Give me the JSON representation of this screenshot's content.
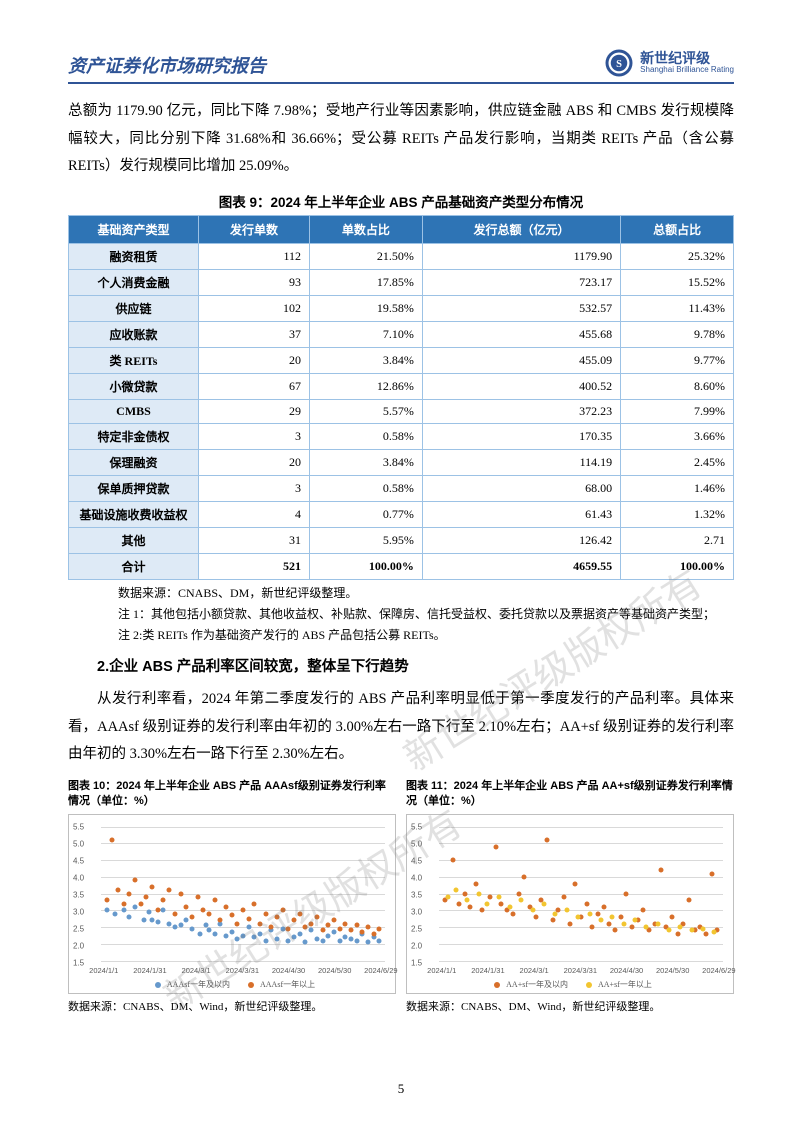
{
  "header": {
    "title": "资产证券化市场研究报告",
    "logo_cn": "新世纪评级",
    "logo_en": "Shanghai Brilliance Rating"
  },
  "para1": "总额为 1179.90 亿元，同比下降 7.98%；受地产行业等因素影响，供应链金融 ABS 和 CMBS 发行规模降幅较大，同比分别下降 31.68%和 36.66%；受公募 REITs 产品发行影响，当期类 REITs 产品（含公募 REITs）发行规模同比增加 25.09%。",
  "table9": {
    "caption": "图表 9：2024 年上半年企业 ABS 产品基础资产类型分布情况",
    "header_bg": "#2e74b5",
    "label_bg": "#deeaf6",
    "border": "#9cc2e5",
    "columns": [
      "基础资产类型",
      "发行单数",
      "单数占比",
      "发行总额（亿元）",
      "总额占比"
    ],
    "rows": [
      [
        "融资租赁",
        "112",
        "21.50%",
        "1179.90",
        "25.32%"
      ],
      [
        "个人消费金融",
        "93",
        "17.85%",
        "723.17",
        "15.52%"
      ],
      [
        "供应链",
        "102",
        "19.58%",
        "532.57",
        "11.43%"
      ],
      [
        "应收账款",
        "37",
        "7.10%",
        "455.68",
        "9.78%"
      ],
      [
        "类 REITs",
        "20",
        "3.84%",
        "455.09",
        "9.77%"
      ],
      [
        "小微贷款",
        "67",
        "12.86%",
        "400.52",
        "8.60%"
      ],
      [
        "CMBS",
        "29",
        "5.57%",
        "372.23",
        "7.99%"
      ],
      [
        "特定非金债权",
        "3",
        "0.58%",
        "170.35",
        "3.66%"
      ],
      [
        "保理融资",
        "20",
        "3.84%",
        "114.19",
        "2.45%"
      ],
      [
        "保单质押贷款",
        "3",
        "0.58%",
        "68.00",
        "1.46%"
      ],
      [
        "基础设施收费收益权",
        "4",
        "0.77%",
        "61.43",
        "1.32%"
      ],
      [
        "其他",
        "31",
        "5.95%",
        "126.42",
        "2.71"
      ]
    ],
    "total": [
      "合计",
      "521",
      "100.00%",
      "4659.55",
      "100.00%"
    ],
    "notes": [
      "数据来源：CNABS、DM，新世纪评级整理。",
      "注 1：其他包括小额贷款、其他收益权、补贴款、保障房、信托受益权、委托贷款以及票据资产等基础资产类型；",
      "注 2:类 REITs 作为基础资产发行的 ABS 产品包括公募 REITs。"
    ]
  },
  "section2": {
    "heading": "2.企业 ABS 产品利率区间较宽，整体呈下行趋势",
    "para": "从发行利率看，2024 年第二季度发行的 ABS 产品利率明显低于第一季度发行的产品利率。具体来看，AAAsf 级别证券的发行利率由年初的 3.00%左右一路下行至 2.10%左右；AA+sf 级别证券的发行利率由年初的 3.30%左右一路下行至 2.30%左右。"
  },
  "chart10": {
    "title": "图表 10：2024 年上半年企业 ABS 产品 AAAsf级别证券发行利率情况（单位：%）",
    "source": "数据来源：CNABS、DM、Wind，新世纪评级整理。",
    "ylim": [
      1.5,
      5.5
    ],
    "ytick_step": 0.5,
    "xlabels": [
      "2024/1/1",
      "2024/1/31",
      "2024/3/1",
      "2024/3/31",
      "2024/4/30",
      "2024/5/30",
      "2024/6/29"
    ],
    "series": [
      {
        "name": "AAAsf一年及以内",
        "color": "#6699cc",
        "points": [
          [
            2,
            3.0
          ],
          [
            5,
            2.9
          ],
          [
            8,
            3.0
          ],
          [
            10,
            2.8
          ],
          [
            12,
            3.1
          ],
          [
            15,
            2.7
          ],
          [
            17,
            2.95
          ],
          [
            18,
            2.7
          ],
          [
            20,
            2.65
          ],
          [
            22,
            3.0
          ],
          [
            24,
            2.6
          ],
          [
            26,
            2.5
          ],
          [
            28,
            2.55
          ],
          [
            30,
            2.7
          ],
          [
            32,
            2.45
          ],
          [
            35,
            2.3
          ],
          [
            37,
            2.55
          ],
          [
            38,
            2.4
          ],
          [
            40,
            2.3
          ],
          [
            42,
            2.6
          ],
          [
            44,
            2.25
          ],
          [
            46,
            2.35
          ],
          [
            48,
            2.15
          ],
          [
            50,
            2.25
          ],
          [
            52,
            2.5
          ],
          [
            54,
            2.2
          ],
          [
            56,
            2.3
          ],
          [
            58,
            2.1
          ],
          [
            60,
            2.4
          ],
          [
            62,
            2.15
          ],
          [
            64,
            2.45
          ],
          [
            66,
            2.1
          ],
          [
            68,
            2.2
          ],
          [
            70,
            2.3
          ],
          [
            72,
            2.05
          ],
          [
            74,
            2.4
          ],
          [
            76,
            2.15
          ],
          [
            78,
            2.1
          ],
          [
            80,
            2.25
          ],
          [
            82,
            2.35
          ],
          [
            84,
            2.1
          ],
          [
            86,
            2.2
          ],
          [
            88,
            2.15
          ],
          [
            90,
            2.1
          ],
          [
            92,
            2.3
          ],
          [
            94,
            2.05
          ],
          [
            96,
            2.2
          ],
          [
            98,
            2.1
          ]
        ]
      },
      {
        "name": "AAAsf一年以上",
        "color": "#d86f2a",
        "points": [
          [
            2,
            3.3
          ],
          [
            4,
            5.1
          ],
          [
            6,
            3.6
          ],
          [
            8,
            3.2
          ],
          [
            10,
            3.5
          ],
          [
            12,
            3.9
          ],
          [
            14,
            3.2
          ],
          [
            16,
            3.4
          ],
          [
            18,
            3.7
          ],
          [
            20,
            3.0
          ],
          [
            22,
            3.3
          ],
          [
            24,
            3.6
          ],
          [
            26,
            2.9
          ],
          [
            28,
            3.5
          ],
          [
            30,
            3.1
          ],
          [
            32,
            2.8
          ],
          [
            34,
            3.4
          ],
          [
            36,
            3.0
          ],
          [
            38,
            2.9
          ],
          [
            40,
            3.3
          ],
          [
            42,
            2.7
          ],
          [
            44,
            3.1
          ],
          [
            46,
            2.85
          ],
          [
            48,
            2.6
          ],
          [
            50,
            3.0
          ],
          [
            52,
            2.75
          ],
          [
            54,
            3.2
          ],
          [
            56,
            2.6
          ],
          [
            58,
            2.9
          ],
          [
            60,
            2.5
          ],
          [
            62,
            2.8
          ],
          [
            64,
            3.0
          ],
          [
            66,
            2.45
          ],
          [
            68,
            2.7
          ],
          [
            70,
            2.9
          ],
          [
            72,
            2.5
          ],
          [
            74,
            2.6
          ],
          [
            76,
            2.8
          ],
          [
            78,
            2.4
          ],
          [
            80,
            2.55
          ],
          [
            82,
            2.7
          ],
          [
            84,
            2.45
          ],
          [
            86,
            2.6
          ],
          [
            88,
            2.4
          ],
          [
            90,
            2.55
          ],
          [
            92,
            2.35
          ],
          [
            94,
            2.5
          ],
          [
            96,
            2.3
          ],
          [
            98,
            2.45
          ]
        ]
      }
    ]
  },
  "chart11": {
    "title": "图表 11：2024 年上半年企业 ABS 产品 AA+sf级别证券发行利率情况（单位：%）",
    "source": "数据来源：CNABS、DM、Wind，新世纪评级整理。",
    "ylim": [
      1.5,
      5.5
    ],
    "ytick_step": 0.5,
    "xlabels": [
      "2024/1/1",
      "2024/1/31",
      "2024/3/1",
      "2024/3/31",
      "2024/4/30",
      "2024/5/30",
      "2024/6/29"
    ],
    "series": [
      {
        "name": "AA+sf一年及以内",
        "color": "#d86f2a",
        "points": [
          [
            2,
            3.3
          ],
          [
            5,
            4.5
          ],
          [
            7,
            3.2
          ],
          [
            9,
            3.5
          ],
          [
            11,
            3.1
          ],
          [
            13,
            3.8
          ],
          [
            15,
            3.0
          ],
          [
            18,
            3.4
          ],
          [
            20,
            4.9
          ],
          [
            22,
            3.2
          ],
          [
            24,
            3.0
          ],
          [
            26,
            2.9
          ],
          [
            28,
            3.5
          ],
          [
            30,
            4.0
          ],
          [
            32,
            3.1
          ],
          [
            34,
            2.8
          ],
          [
            36,
            3.3
          ],
          [
            38,
            5.1
          ],
          [
            40,
            2.7
          ],
          [
            42,
            3.0
          ],
          [
            44,
            3.4
          ],
          [
            46,
            2.6
          ],
          [
            48,
            3.8
          ],
          [
            50,
            2.8
          ],
          [
            52,
            3.2
          ],
          [
            54,
            2.5
          ],
          [
            56,
            2.9
          ],
          [
            58,
            3.1
          ],
          [
            60,
            2.6
          ],
          [
            62,
            2.4
          ],
          [
            64,
            2.8
          ],
          [
            66,
            3.5
          ],
          [
            68,
            2.5
          ],
          [
            70,
            2.7
          ],
          [
            72,
            3.0
          ],
          [
            74,
            2.4
          ],
          [
            76,
            2.6
          ],
          [
            78,
            4.2
          ],
          [
            80,
            2.5
          ],
          [
            82,
            2.8
          ],
          [
            84,
            2.3
          ],
          [
            86,
            2.6
          ],
          [
            88,
            3.3
          ],
          [
            90,
            2.4
          ],
          [
            92,
            2.5
          ],
          [
            94,
            2.3
          ],
          [
            96,
            4.1
          ],
          [
            98,
            2.4
          ]
        ]
      },
      {
        "name": "AA+sf一年以上",
        "color": "#f2c530",
        "points": [
          [
            3,
            3.4
          ],
          [
            6,
            3.6
          ],
          [
            10,
            3.3
          ],
          [
            14,
            3.5
          ],
          [
            17,
            3.2
          ],
          [
            21,
            3.4
          ],
          [
            25,
            3.1
          ],
          [
            29,
            3.3
          ],
          [
            33,
            3.0
          ],
          [
            37,
            3.2
          ],
          [
            41,
            2.9
          ],
          [
            45,
            3.0
          ],
          [
            49,
            2.8
          ],
          [
            53,
            2.9
          ],
          [
            57,
            2.7
          ],
          [
            61,
            2.8
          ],
          [
            65,
            2.6
          ],
          [
            69,
            2.7
          ],
          [
            73,
            2.5
          ],
          [
            77,
            2.6
          ],
          [
            81,
            2.4
          ],
          [
            85,
            2.5
          ],
          [
            89,
            2.4
          ],
          [
            93,
            2.45
          ],
          [
            97,
            2.35
          ]
        ]
      }
    ]
  },
  "watermark": "新世纪评级版权所有",
  "page_num": "5"
}
